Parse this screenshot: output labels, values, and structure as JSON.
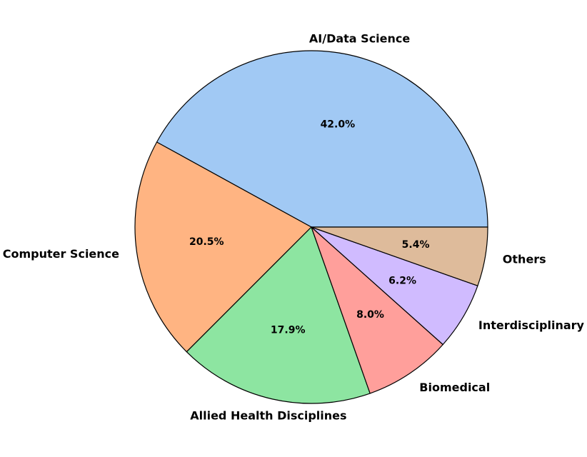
{
  "chart_data": {
    "type": "pie",
    "categories": [
      "AI/Data Science",
      "Computer Science",
      "Allied Health Disciplines",
      "Biomedical",
      "Interdisciplinary",
      "Others"
    ],
    "values": [
      42.0,
      20.5,
      17.9,
      8.0,
      6.2,
      5.4
    ],
    "value_labels": [
      "42.0%",
      "20.5%",
      "17.9%",
      "8.0%",
      "6.2%",
      "5.4%"
    ],
    "colors": [
      "#a1c9f4",
      "#ffb482",
      "#8de5a1",
      "#ff9f9b",
      "#d0bbff",
      "#debb9b"
    ]
  }
}
